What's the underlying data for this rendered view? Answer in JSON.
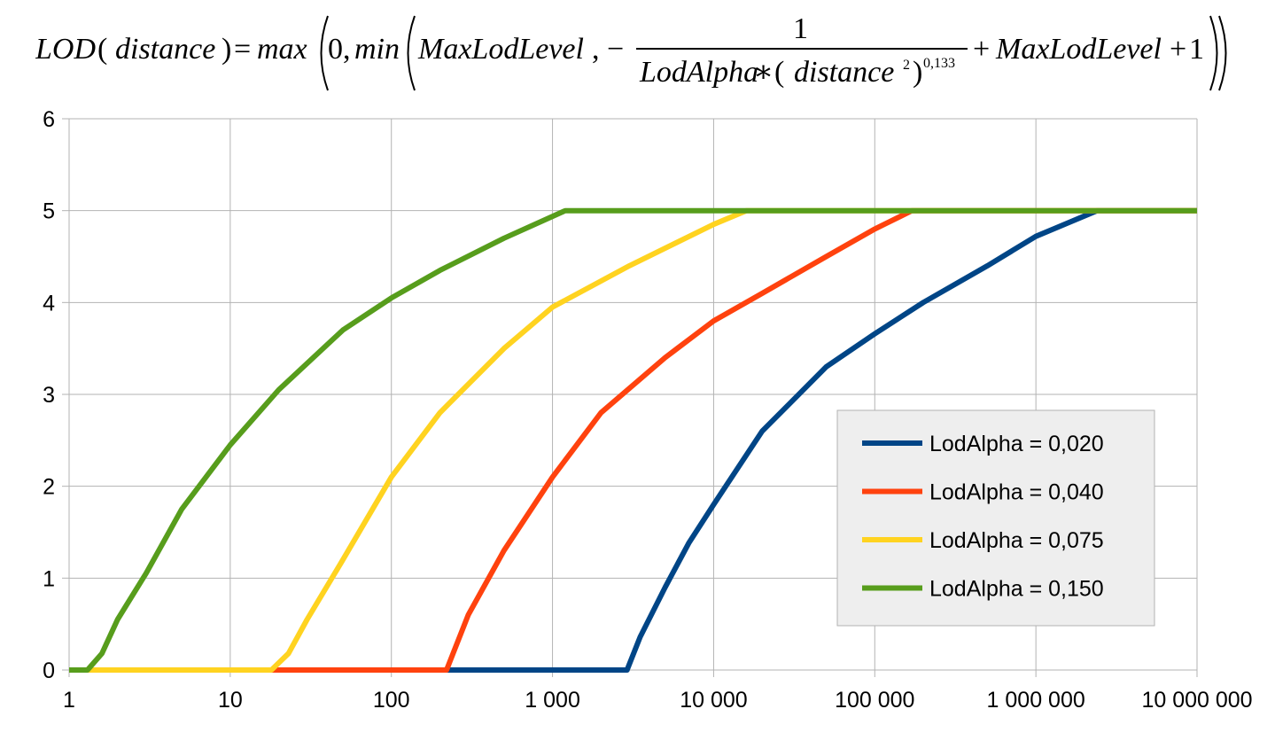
{
  "formula": {
    "lhs": "LOD",
    "lhs_arg": "distance",
    "eq": "=",
    "fn_max": "max",
    "zero": "0,",
    "fn_min": "min",
    "max_level": "MaxLodLevel",
    "comma": ",",
    "minus": "−",
    "numerator": "1",
    "den_alpha": "LodAlpha",
    "den_star": "∗",
    "den_distance": "distance",
    "den_sq": "2",
    "den_exp": "0,133",
    "plus1": "+",
    "max_level2": "MaxLodLevel",
    "plus2": "+",
    "one": "1"
  },
  "colors": {
    "series_0": "#004586",
    "series_1": "#ff420e",
    "series_2": "#ffd320",
    "series_3": "#579d1c",
    "grid": "#b3b3b3",
    "legend_bg": "#eeeeee"
  },
  "chart_data": {
    "type": "line",
    "x_scale": "log",
    "xlim": [
      1,
      10000000
    ],
    "ylim": [
      0,
      6
    ],
    "grid": true,
    "legend_position": "right",
    "x_tick_labels": [
      "1",
      "10",
      "100",
      "1 000",
      "10 000",
      "100 000",
      "1 000 000",
      "10 000 000"
    ],
    "x_tick_values": [
      1,
      10,
      100,
      1000,
      10000,
      100000,
      1000000,
      10000000
    ],
    "y_tick_labels": [
      "0",
      "1",
      "2",
      "3",
      "4",
      "5",
      "6"
    ],
    "y_tick_values": [
      0,
      1,
      2,
      3,
      4,
      5,
      6
    ],
    "series": [
      {
        "name": "LodAlpha = 0,020",
        "color": "#004586",
        "x": [
          1,
          2000,
          2900,
          3500,
          5000,
          7000,
          10000,
          20000,
          50000,
          100000,
          200000,
          500000,
          1000000,
          2400000,
          10000000
        ],
        "y": [
          0,
          0,
          0,
          0.36,
          0.9,
          1.38,
          1.8,
          2.6,
          3.3,
          3.66,
          4.0,
          4.4,
          4.72,
          5,
          5
        ]
      },
      {
        "name": "LodAlpha = 0,040",
        "color": "#ff420e",
        "x": [
          1,
          150,
          220,
          300,
          500,
          1000,
          2000,
          5000,
          10000,
          20000,
          50000,
          100000,
          170000,
          10000000
        ],
        "y": [
          0,
          0,
          0,
          0.6,
          1.3,
          2.1,
          2.8,
          3.4,
          3.8,
          4.1,
          4.5,
          4.8,
          5,
          5
        ]
      },
      {
        "name": "LodAlpha = 0,075",
        "color": "#ffd320",
        "x": [
          1,
          18,
          23,
          30,
          50,
          100,
          200,
          500,
          1000,
          3000,
          10000,
          16000,
          10000000
        ],
        "y": [
          0,
          0,
          0.18,
          0.55,
          1.2,
          2.1,
          2.8,
          3.5,
          3.95,
          4.4,
          4.85,
          5,
          5
        ]
      },
      {
        "name": "LodAlpha = 0,150",
        "color": "#579d1c",
        "x": [
          1,
          1.3,
          1.6,
          2,
          3,
          5,
          10,
          20,
          50,
          100,
          200,
          500,
          1200,
          10000000
        ],
        "y": [
          0,
          0,
          0.18,
          0.55,
          1.05,
          1.75,
          2.45,
          3.05,
          3.7,
          4.05,
          4.35,
          4.7,
          5,
          5
        ]
      }
    ]
  }
}
